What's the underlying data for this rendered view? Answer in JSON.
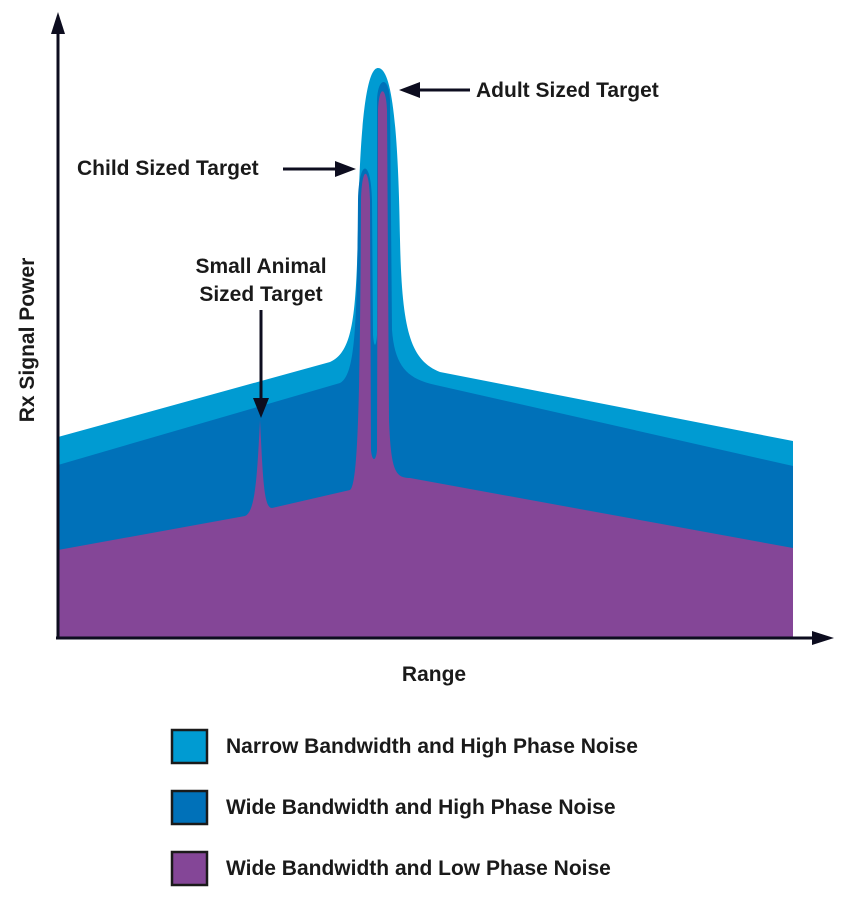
{
  "chart_data": {
    "type": "area",
    "xlabel": "Range",
    "ylabel": "Rx Signal Power",
    "grid": false,
    "legend_position": "bottom",
    "series": [
      {
        "name": "Narrow Bandwidth and High Phase Noise",
        "color": "#009bd2"
      },
      {
        "name": "Wide Bandwidth and High Phase Noise",
        "color": "#0071b9"
      },
      {
        "name": "Wide Bandwidth and Low Phase Noise",
        "color": "#844697"
      }
    ],
    "annotations": {
      "adult": "Adult Sized Target",
      "child": "Child Sized Target",
      "animal_line1": "Small Animal",
      "animal_line2": "Sized Target"
    }
  }
}
